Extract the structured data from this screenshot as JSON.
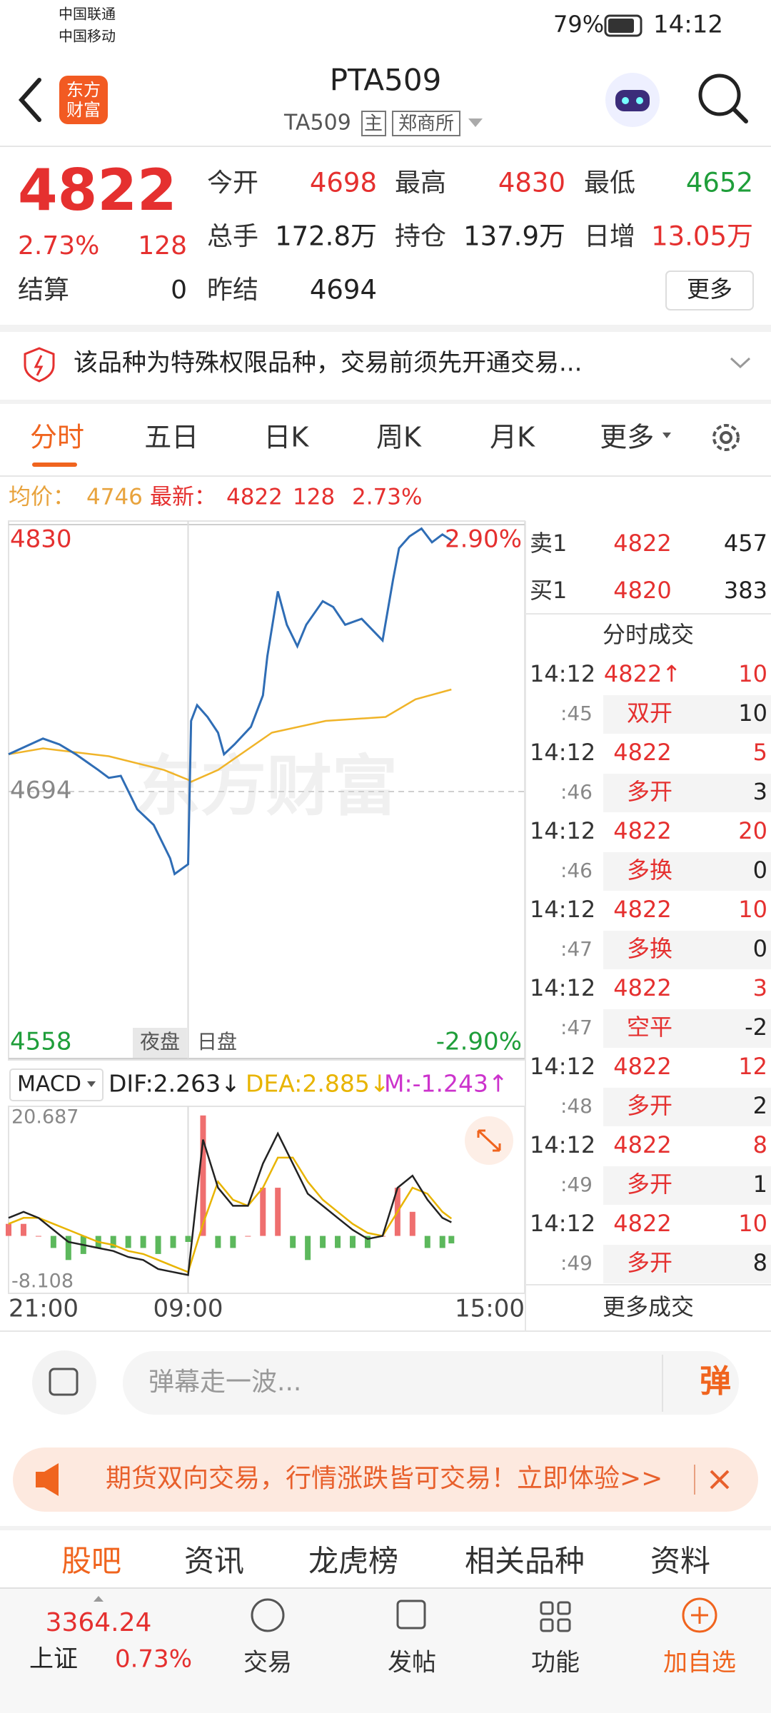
{
  "status_bar": {
    "carrier1": "中国联通",
    "carrier2": "中国移动",
    "battery": "79%",
    "time": "14:12"
  },
  "header": {
    "logo": [
      "东方",
      "财富"
    ],
    "title": "PTA509",
    "code": "TA509",
    "tag": "主",
    "exchange": "郑商所"
  },
  "quote": {
    "price": "4822",
    "change_pct": "2.73%",
    "change": "128",
    "settle_label": "结算",
    "settle": "0",
    "fields": [
      [
        {
          "label": "今开",
          "value": "4698"
        },
        {
          "label": "最高",
          "value": "4830"
        },
        {
          "label": "最低",
          "value": "4652"
        }
      ],
      [
        {
          "label": "总手",
          "value": "172.8万"
        },
        {
          "label": "持仓",
          "value": "137.9万"
        },
        {
          "label": "日增",
          "value": "13.05万"
        }
      ],
      [
        {
          "label": "昨结",
          "value": "4694"
        }
      ]
    ],
    "more": "更多"
  },
  "notice": "该品种为特殊权限品种，交易前须先开通交易...",
  "tabs": [
    "分时",
    "五日",
    "日K",
    "周K",
    "月K",
    "更多"
  ],
  "info_line": {
    "avg_label": "均价：",
    "avg": "4746",
    "last_label": "最新：",
    "last": "4822",
    "change": "128",
    "change_pct": "2.73%"
  },
  "chart_data": [
    {
      "type": "line",
      "watermark": "东方财富",
      "session_labels": [
        "夜盘",
        "日盘"
      ],
      "xlim": [
        0,
        345
      ],
      "xticks": [
        {
          "value": 0,
          "label": "21:00"
        },
        {
          "value": 120,
          "label": "09:00"
        },
        {
          "value": 345,
          "label": "15:00"
        }
      ],
      "ylim": [
        4558,
        4830
      ],
      "yticks": [
        4830,
        4694,
        4558
      ],
      "y2lim": [
        -2.9,
        2.9
      ],
      "y2ticks": [
        {
          "value": 2.9,
          "label": "2.90%"
        },
        {
          "value": -2.9,
          "label": "-2.90%"
        }
      ],
      "series": [
        {
          "color": "#2f6db5",
          "x": [
            0,
            23,
            34,
            45,
            60,
            67,
            75,
            86,
            97,
            108,
            111,
            120,
            122,
            126,
            133,
            140,
            144,
            151,
            162,
            170,
            173,
            180,
            186,
            193,
            199,
            210,
            217,
            225,
            236,
            250,
            257,
            261,
            268,
            276,
            283,
            290,
            296
          ],
          "values": [
            4713,
            4721,
            4718,
            4713,
            4705,
            4701,
            4702,
            4685,
            4677,
            4660,
            4652,
            4657,
            4730,
            4738,
            4732,
            4724,
            4713,
            4718,
            4727,
            4743,
            4763,
            4796,
            4779,
            4768,
            4779,
            4791,
            4788,
            4779,
            4782,
            4771,
            4802,
            4818,
            4824,
            4828,
            4821,
            4825,
            4822
          ]
        },
        {
          "color": "#f0b429",
          "x": [
            0,
            23,
            67,
            104,
            120,
            122,
            140,
            176,
            212,
            252,
            272,
            296
          ],
          "values": [
            4713,
            4716,
            4712,
            4705,
            4700,
            4699,
            4705,
            4724,
            4730,
            4732,
            4741,
            4746
          ]
        }
      ]
    },
    {
      "type": "macd",
      "indicator": "MACD",
      "legend": [
        "DIF:2.263↓",
        "DEA:2.885↓",
        "M:-1.243↑"
      ],
      "ylim": [
        -8.108,
        20.687
      ],
      "yticks": [
        20.687,
        -8.108
      ],
      "x": [
        0,
        10,
        20,
        30,
        40,
        50,
        60,
        70,
        80,
        90,
        100,
        110,
        120,
        130,
        140,
        150,
        160,
        170,
        180,
        190,
        200,
        210,
        220,
        230,
        240,
        250,
        260,
        270,
        280,
        290,
        296
      ],
      "series": [
        {
          "color": "#222222",
          "values": [
            3,
            4,
            3,
            1,
            -1,
            -1.5,
            -2,
            -2.5,
            -3.5,
            -4,
            -5.5,
            -6,
            -6.5,
            16,
            8,
            5,
            5,
            12,
            17,
            12,
            7,
            5,
            3,
            1,
            -0.5,
            0,
            8,
            10,
            6,
            3,
            2.263
          ]
        },
        {
          "color": "#e8b400",
          "values": [
            2,
            3,
            3,
            2,
            1,
            0,
            -1,
            -1.5,
            -2.5,
            -3,
            -4,
            -5,
            -6,
            2,
            9,
            6,
            5,
            8,
            13,
            13,
            9,
            6,
            4,
            2,
            0.5,
            0,
            4,
            8,
            7,
            4,
            2.885
          ]
        }
      ],
      "bars": {
        "up_color": "#ef6f6f",
        "down_color": "#5cb85c",
        "values": [
          2,
          2,
          0,
          -2,
          -4,
          -3,
          -2,
          -2,
          -2,
          -2,
          -3,
          -2,
          -1,
          20,
          -2,
          -2,
          0,
          8,
          8,
          -2,
          -4,
          -2,
          -2,
          -2,
          -2,
          0,
          8,
          4,
          -2,
          -2,
          -1.243
        ]
      }
    }
  ],
  "order_book": [
    {
      "side": "卖1",
      "price": "4822",
      "volume": "457"
    },
    {
      "side": "买1",
      "price": "4820",
      "volume": "383"
    }
  ],
  "trades": {
    "title": "分时成交",
    "more": "更多成交",
    "rows": [
      {
        "time": "14:12",
        "price": "4822↑",
        "volume": "10",
        "sec": ":45",
        "kind": "双开",
        "oi": "10"
      },
      {
        "time": "14:12",
        "price": "4822",
        "volume": "5",
        "sec": ":46",
        "kind": "多开",
        "oi": "3"
      },
      {
        "time": "14:12",
        "price": "4822",
        "volume": "20",
        "sec": ":46",
        "kind": "多换",
        "oi": "0"
      },
      {
        "time": "14:12",
        "price": "4822",
        "volume": "10",
        "sec": ":47",
        "kind": "多换",
        "oi": "0"
      },
      {
        "time": "14:12",
        "price": "4822",
        "volume": "3",
        "sec": ":47",
        "kind": "空平",
        "oi": "-2"
      },
      {
        "time": "14:12",
        "price": "4822",
        "volume": "12",
        "sec": ":48",
        "kind": "多开",
        "oi": "2"
      },
      {
        "time": "14:12",
        "price": "4822",
        "volume": "8",
        "sec": ":49",
        "kind": "多开",
        "oi": "1"
      },
      {
        "time": "14:12",
        "price": "4822",
        "volume": "10",
        "sec": ":49",
        "kind": "多开",
        "oi": "8"
      }
    ]
  },
  "comment_placeholder": "弹幕走一波...",
  "danmu_button": "弹",
  "banner": "期货双向交易，行情涨跌皆可交易！立即体验>>",
  "bottom_tabs": [
    "股吧",
    "资讯",
    "龙虎榜",
    "相关品种",
    "资料"
  ],
  "bottom_nav": {
    "index_value": "3364.24",
    "index_name": "上证",
    "index_change": "0.73%",
    "items": [
      "交易",
      "发帖",
      "功能",
      "加自选"
    ]
  }
}
